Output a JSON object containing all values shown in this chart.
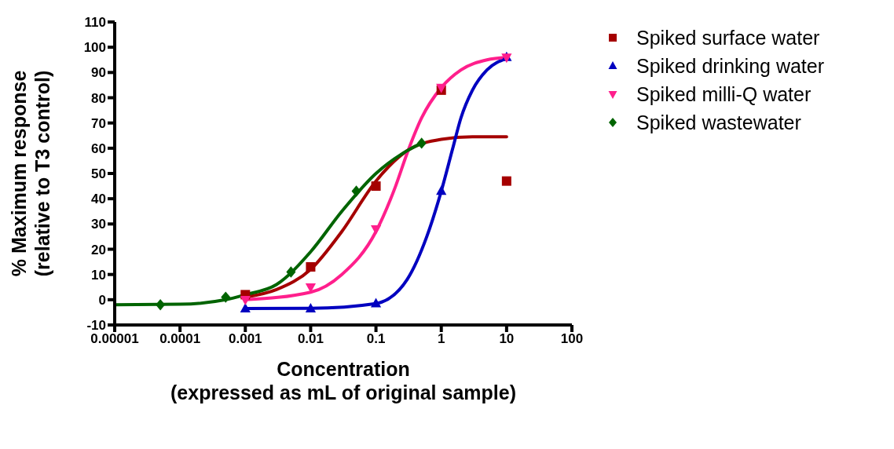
{
  "chart_data": {
    "type": "scatter",
    "xlabel": "Concentration\n(expressed as mL of original sample)",
    "ylabel": "% Maximum response\n(relative to T3 control)",
    "log": "x",
    "xlim": [
      1e-05,
      100
    ],
    "xticks": [
      {
        "value": 1e-05,
        "label": "0.00001"
      },
      {
        "value": 0.0001,
        "label": "0.0001"
      },
      {
        "value": 0.001,
        "label": "0.001"
      },
      {
        "value": 0.01,
        "label": "0.01"
      },
      {
        "value": 0.1,
        "label": "0.1"
      },
      {
        "value": 1,
        "label": "1"
      },
      {
        "value": 10,
        "label": "10"
      },
      {
        "value": 100,
        "label": "100"
      }
    ],
    "ylim": [
      -10,
      110
    ],
    "yticks": [
      -10,
      0,
      10,
      20,
      30,
      40,
      50,
      60,
      70,
      80,
      90,
      100,
      110
    ],
    "grid": false,
    "legend": "top right",
    "series": [
      {
        "name": "Spiked surface water",
        "color": "#a50000",
        "marker": "square",
        "x": [
          0.001,
          0.01,
          0.1,
          1,
          10
        ],
        "values": [
          2,
          13,
          45,
          83,
          47
        ]
      },
      {
        "name": "Spiked drinking water",
        "color": "#0000c0",
        "marker": "triangle",
        "x": [
          0.001,
          0.01,
          0.1,
          1,
          10
        ],
        "values": [
          -3.5,
          -3.5,
          -1.5,
          43,
          96
        ]
      },
      {
        "name": "Spiked milli-Q water",
        "color": "#ff1f8c",
        "marker": "triangle-down",
        "x": [
          0.001,
          0.01,
          0.1,
          1,
          10
        ],
        "values": [
          0,
          5,
          28,
          84,
          96
        ]
      },
      {
        "name": "Spiked wastewater",
        "color": "#006400",
        "marker": "diamond",
        "x": [
          5e-05,
          0.0005,
          0.005,
          0.05,
          0.5
        ],
        "values": [
          -2,
          1,
          11,
          43,
          62
        ]
      },
      {
        "type": "line",
        "color": "#a50000",
        "line_style": "solid",
        "x": [
          0.001,
          0.003,
          0.01,
          0.03,
          0.1,
          0.3,
          1,
          3,
          10
        ],
        "values": [
          1,
          4,
          12,
          27,
          47,
          59,
          63.5,
          64.5,
          64.5
        ]
      },
      {
        "type": "line",
        "color": "#0000c0",
        "line_style": "solid",
        "x": [
          0.001,
          0.01,
          0.1,
          0.3,
          0.6,
          1,
          1.5,
          2,
          3,
          5,
          10
        ],
        "values": [
          -3.5,
          -3.4,
          -1.5,
          8,
          25,
          43,
          60,
          72,
          83,
          91,
          95.5
        ]
      },
      {
        "type": "line",
        "color": "#ff1f8c",
        "line_style": "solid",
        "x": [
          0.001,
          0.01,
          0.03,
          0.1,
          0.2,
          0.3,
          0.5,
          1,
          2,
          5,
          10
        ],
        "values": [
          0,
          3,
          10,
          27,
          45,
          58,
          72,
          84,
          91,
          95,
          96
        ]
      },
      {
        "type": "line",
        "color": "#006400",
        "line_style": "solid",
        "x": [
          1e-05,
          0.0001,
          0.0005,
          0.001,
          0.003,
          0.01,
          0.03,
          0.1,
          0.3,
          0.5
        ],
        "values": [
          -2,
          -1.8,
          0,
          2,
          6,
          19,
          35,
          50,
          59,
          62
        ]
      }
    ]
  }
}
